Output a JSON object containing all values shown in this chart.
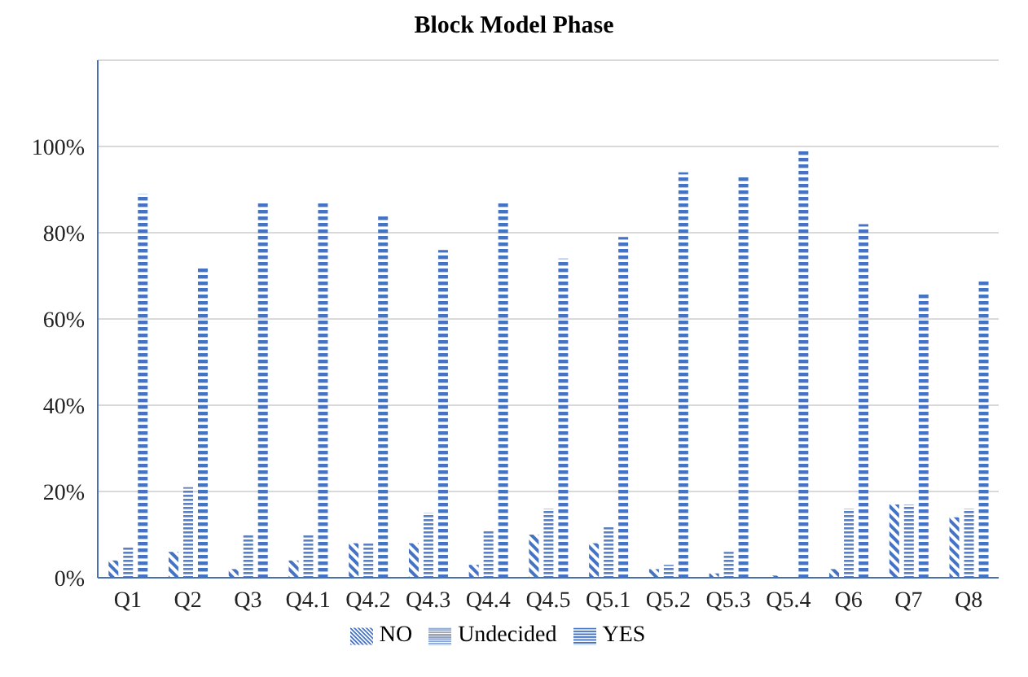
{
  "chart_data": {
    "type": "bar",
    "title": "Block Model Phase",
    "categories": [
      "Q1",
      "Q2",
      "Q3",
      "Q4.1",
      "Q4.2",
      "Q4.3",
      "Q4.4",
      "Q4.5",
      "Q5.1",
      "Q5.2",
      "Q5.3",
      "Q5.4",
      "Q6",
      "Q7",
      "Q8"
    ],
    "series": [
      {
        "name": "NO",
        "color": "#4472c4",
        "values": [
          4,
          6,
          2,
          4,
          8,
          8,
          3,
          10,
          8,
          2,
          1,
          0.5,
          2,
          17,
          14
        ]
      },
      {
        "name": "Undecided",
        "color": "#5b7fc0",
        "values": [
          7,
          21,
          10,
          10,
          8,
          15,
          11,
          16,
          12,
          3,
          6,
          0,
          16,
          17,
          16
        ]
      },
      {
        "name": "YES",
        "color": "#4472c4",
        "values": [
          89,
          72,
          87,
          87,
          84,
          76,
          87,
          74,
          79,
          94,
          93,
          99,
          82,
          66,
          69
        ]
      }
    ],
    "ylim": [
      0,
      120
    ],
    "yticks": [
      {
        "value": 0,
        "label": "0%"
      },
      {
        "value": 20,
        "label": "20%"
      },
      {
        "value": 40,
        "label": "40%"
      },
      {
        "value": 60,
        "label": "60%"
      },
      {
        "value": 80,
        "label": "80%"
      },
      {
        "value": 100,
        "label": "100%"
      }
    ],
    "grid": "y",
    "legend": "bottom"
  }
}
